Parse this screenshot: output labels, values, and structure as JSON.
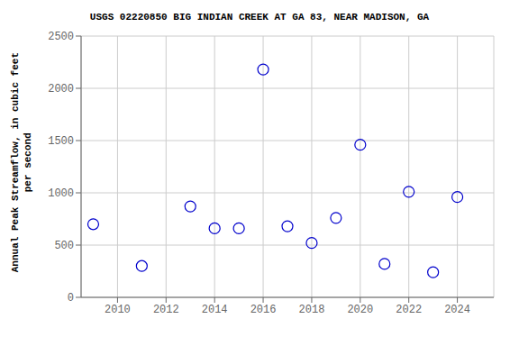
{
  "chart_data": {
    "type": "scatter",
    "title": "USGS 02220850 BIG INDIAN CREEK AT GA 83, NEAR MADISON, GA",
    "ylabel": "Annual Peak Streamflow, in cubic feet\nper second",
    "x": [
      2009,
      2011,
      2013,
      2014,
      2015,
      2016,
      2017,
      2018,
      2019,
      2020,
      2021,
      2022,
      2023,
      2024
    ],
    "values": [
      700,
      300,
      870,
      660,
      660,
      2180,
      680,
      520,
      760,
      1460,
      320,
      1010,
      240,
      960
    ],
    "xlim": [
      2008.5,
      2025.5
    ],
    "ylim": [
      0,
      2500
    ],
    "xticks": [
      2010,
      2012,
      2014,
      2016,
      2018,
      2020,
      2022,
      2024
    ],
    "yticks": [
      0,
      500,
      1000,
      1500,
      2000,
      2500
    ],
    "color": "#0000CC",
    "marker": "circle",
    "grid": true
  }
}
